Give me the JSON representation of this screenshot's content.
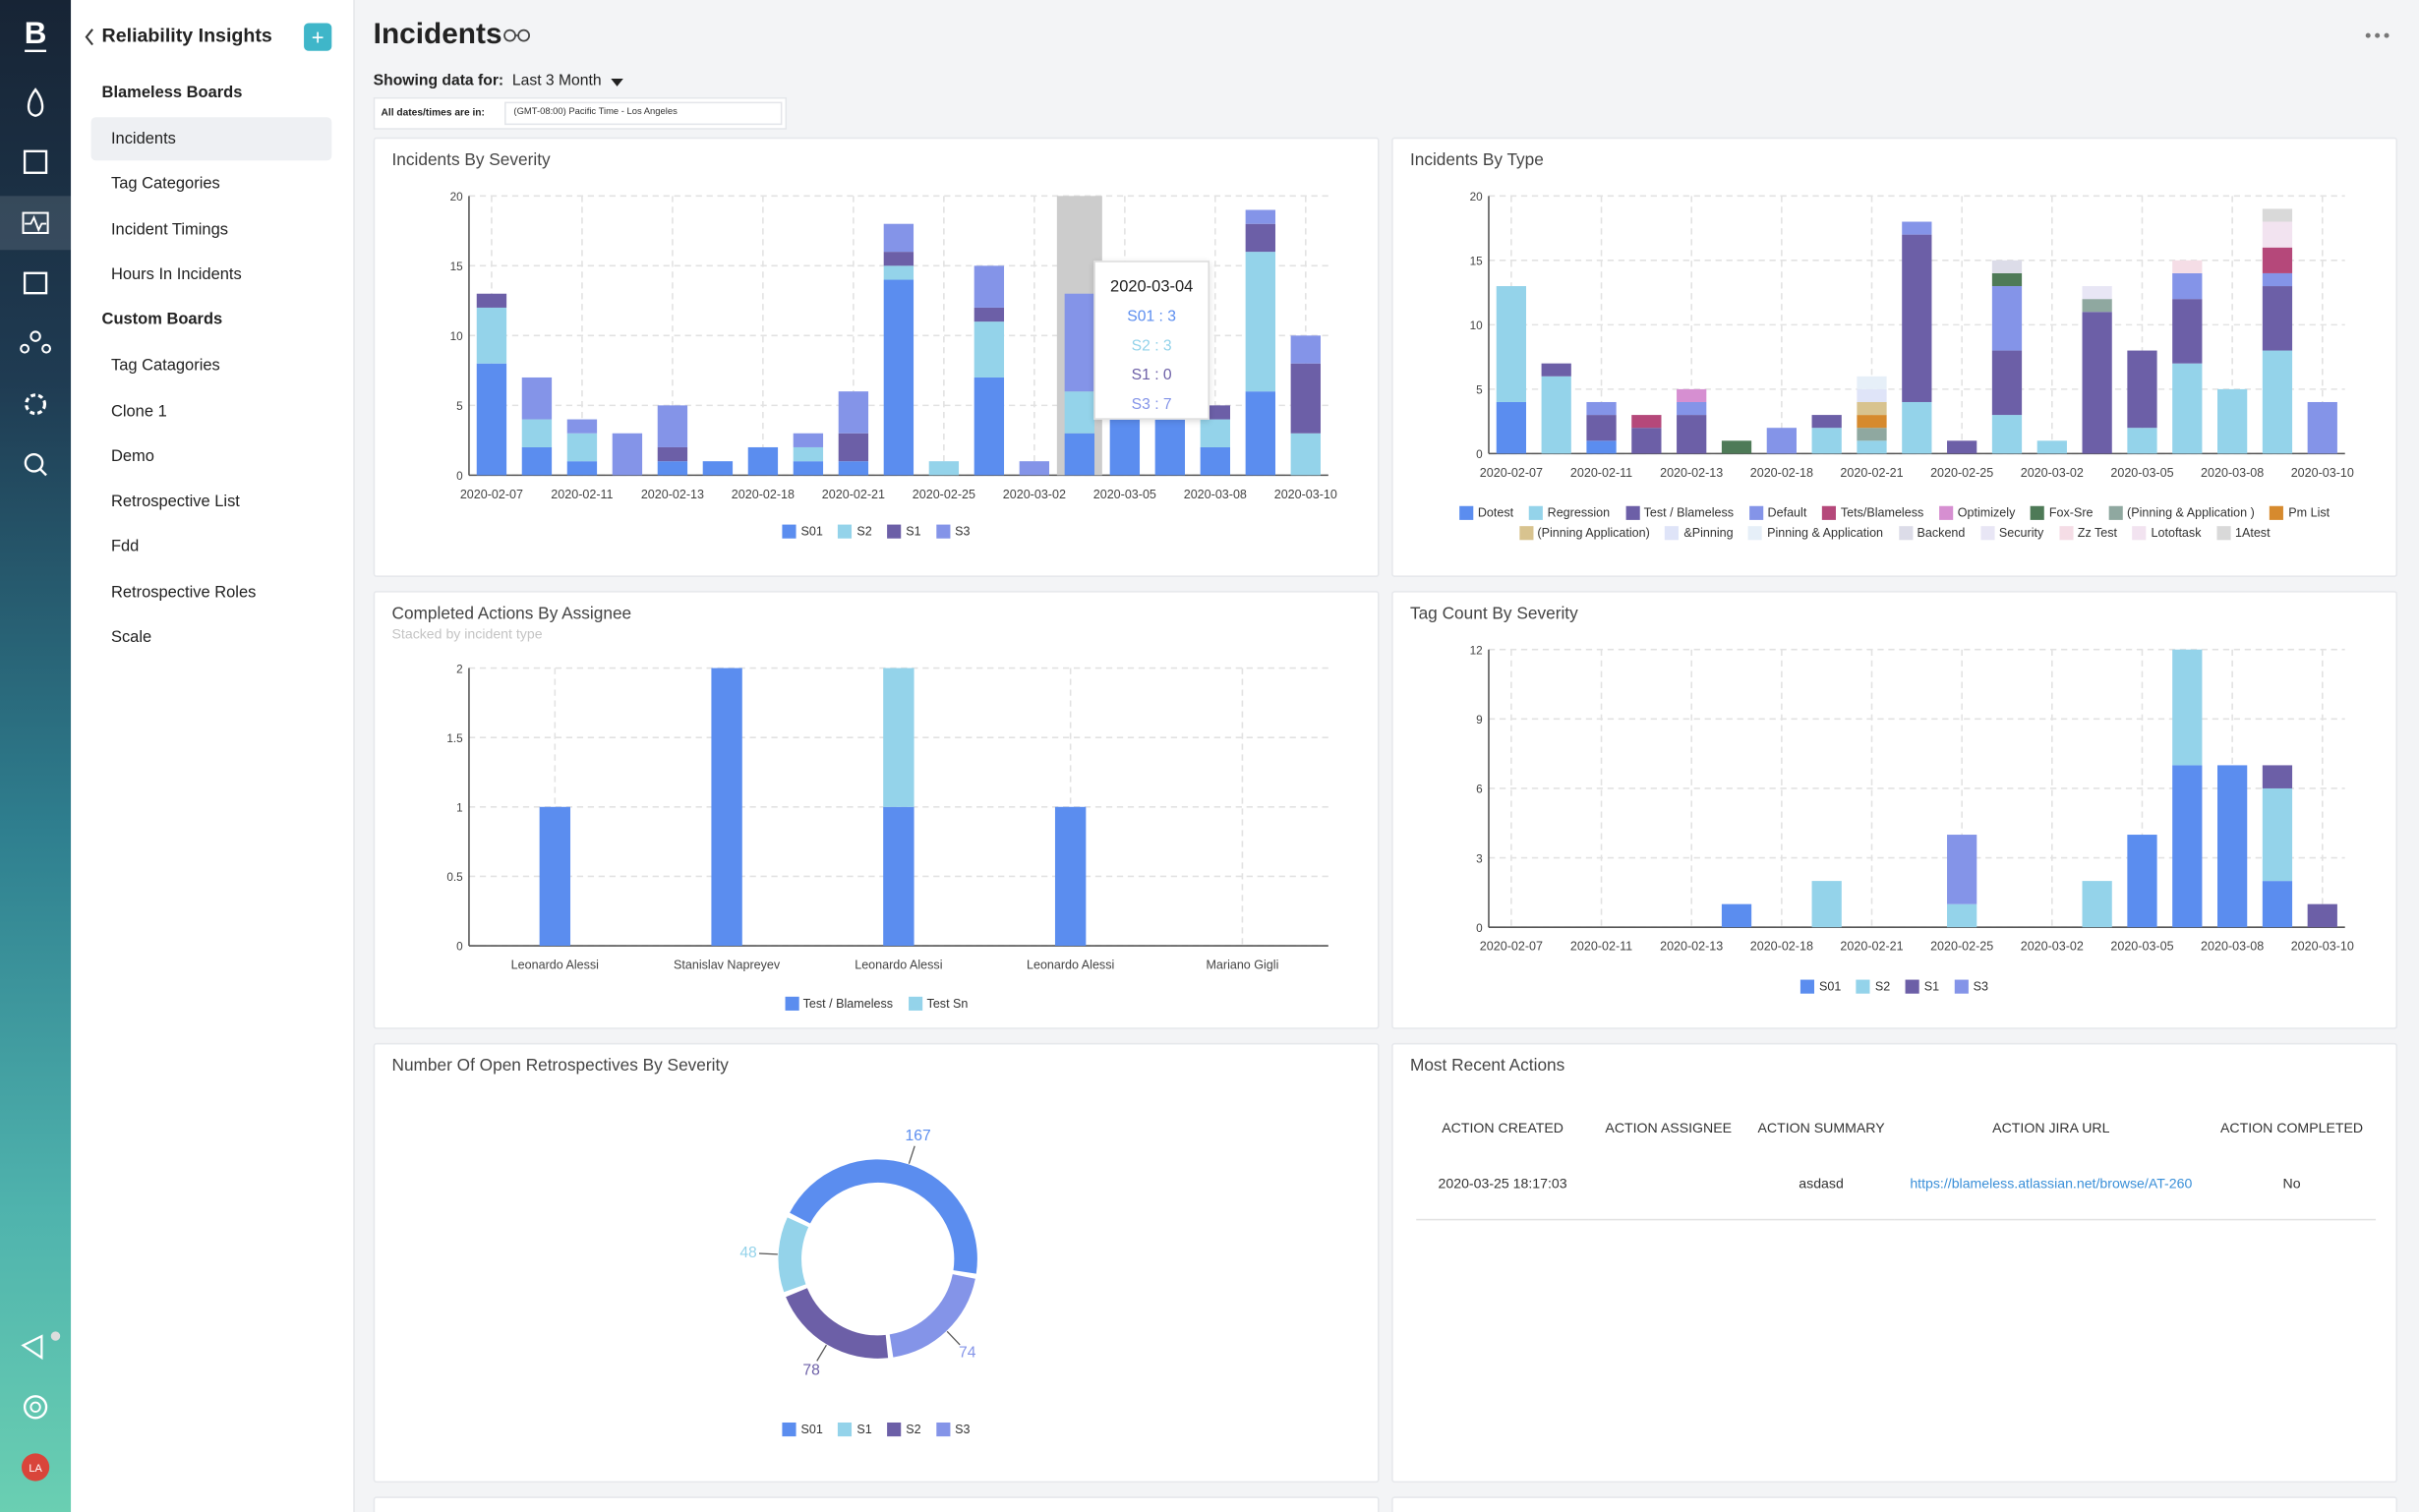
{
  "sidebar": {
    "title": "Reliability Insights",
    "sections": [
      {
        "heading": "Blameless Boards",
        "items": [
          "Incidents",
          "Tag Categories",
          "Incident Timings",
          "Hours In Incidents"
        ]
      },
      {
        "heading": "Custom Boards",
        "items": [
          "Tag Catagories",
          "Clone 1",
          "Demo",
          "Retrospective List",
          "Fdd",
          "Retrospective Roles",
          "Scale"
        ]
      }
    ],
    "avatar": "LA"
  },
  "header": {
    "title": "Incidents",
    "showing_label": "Showing data for:",
    "range": "Last 3 Month",
    "tz_label": "All dates/times are in:",
    "tz": "(GMT-08:00) Pacific Time - Los Angeles"
  },
  "charts": [
    {
      "type": "bar",
      "stacked": true,
      "grid": true,
      "title": "Incidents By Severity",
      "categories": [
        "2020-02-07",
        null,
        "2020-02-11",
        null,
        "2020-02-13",
        null,
        "2020-02-18",
        null,
        "2020-02-21",
        null,
        "2020-02-25",
        null,
        "2020-03-02",
        null,
        "2020-03-05",
        null,
        "2020-03-08",
        null,
        "2020-03-10"
      ],
      "series": [
        {
          "name": "S01",
          "color": "#5b8def",
          "values": [
            8,
            2,
            1,
            0,
            1,
            1,
            2,
            1,
            1,
            14,
            0,
            7,
            0,
            3,
            5,
            5,
            2,
            6,
            0
          ]
        },
        {
          "name": "S2",
          "color": "#94d3ea",
          "values": [
            4,
            2,
            2,
            0,
            0,
            0,
            0,
            1,
            0,
            1,
            1,
            4,
            0,
            3,
            0,
            0,
            2,
            10,
            3
          ]
        },
        {
          "name": "S1",
          "color": "#6c5fa7",
          "values": [
            1,
            0,
            0,
            0,
            1,
            0,
            0,
            0,
            2,
            1,
            0,
            1,
            0,
            0,
            0,
            0,
            1,
            2,
            5
          ]
        },
        {
          "name": "S3",
          "color": "#8494e8",
          "values": [
            0,
            3,
            1,
            3,
            3,
            0,
            0,
            1,
            3,
            2,
            0,
            3,
            1,
            7,
            0,
            0,
            0,
            1,
            2
          ]
        }
      ],
      "ylim": [
        0,
        20
      ],
      "yticks": [
        0,
        5,
        10,
        15,
        20
      ],
      "tooltip": {
        "category": "2020-03-04",
        "labels": [
          "S01 : 3",
          "S2 : 3",
          "S1 : 0",
          "S3 : 7"
        ]
      }
    },
    {
      "type": "bar",
      "stacked": true,
      "grid": true,
      "title": "Incidents By Type",
      "categories": [
        "2020-02-07",
        null,
        "2020-02-11",
        null,
        "2020-02-13",
        null,
        "2020-02-18",
        null,
        "2020-02-21",
        null,
        "2020-02-25",
        null,
        "2020-03-02",
        null,
        "2020-03-05",
        null,
        "2020-03-08",
        null,
        "2020-03-10"
      ],
      "series": [
        {
          "name": "Dotest",
          "color": "#5b8def",
          "values": [
            4,
            0,
            1,
            0,
            0,
            0,
            0,
            0,
            0,
            0,
            0,
            0,
            0,
            0,
            0,
            0,
            0,
            0,
            0
          ]
        },
        {
          "name": "Regression",
          "color": "#94d3ea",
          "values": [
            9,
            6,
            0,
            0,
            0,
            0,
            0,
            2,
            1,
            4,
            0,
            3,
            1,
            0,
            2,
            7,
            5,
            8,
            0
          ]
        },
        {
          "name": "Test / Blameless",
          "color": "#6c5fa7",
          "values": [
            0,
            1,
            2,
            2,
            3,
            0,
            0,
            1,
            0,
            13,
            1,
            5,
            0,
            11,
            6,
            5,
            0,
            5,
            0
          ]
        },
        {
          "name": "Default",
          "color": "#8494e8",
          "values": [
            0,
            0,
            1,
            0,
            1,
            0,
            2,
            0,
            0,
            1,
            0,
            5,
            0,
            0,
            0,
            2,
            0,
            1,
            4
          ]
        },
        {
          "name": "Tets/Blameless",
          "color": "#b5487a",
          "values": [
            0,
            0,
            0,
            1,
            0,
            0,
            0,
            0,
            0,
            0,
            0,
            0,
            0,
            0,
            0,
            0,
            0,
            2,
            0
          ]
        },
        {
          "name": "Optimizely",
          "color": "#d68fd1",
          "values": [
            0,
            0,
            0,
            0,
            1,
            0,
            0,
            0,
            0,
            0,
            0,
            0,
            0,
            0,
            0,
            0,
            0,
            0,
            0
          ]
        },
        {
          "name": "Fox-Sre",
          "color": "#4e7a57",
          "values": [
            0,
            0,
            0,
            0,
            0,
            1,
            0,
            0,
            0,
            0,
            0,
            1,
            0,
            0,
            0,
            0,
            0,
            0,
            0
          ]
        },
        {
          "name": "(Pinning & Application )",
          "color": "#8fa8a0",
          "values": [
            0,
            0,
            0,
            0,
            0,
            0,
            0,
            0,
            1,
            0,
            0,
            0,
            0,
            1,
            0,
            0,
            0,
            0,
            0
          ]
        },
        {
          "name": "Pm List",
          "color": "#d68a2e",
          "values": [
            0,
            0,
            0,
            0,
            0,
            0,
            0,
            0,
            1,
            0,
            0,
            0,
            0,
            0,
            0,
            0,
            0,
            0,
            0
          ]
        },
        {
          "name": "(Pinning Application)",
          "color": "#d8c38f",
          "values": [
            0,
            0,
            0,
            0,
            0,
            0,
            0,
            0,
            1,
            0,
            0,
            0,
            0,
            0,
            0,
            0,
            0,
            0,
            0
          ]
        },
        {
          "name": "&Pinning",
          "color": "#dfe4f8",
          "values": [
            0,
            0,
            0,
            0,
            0,
            0,
            0,
            0,
            1,
            0,
            0,
            0,
            0,
            0,
            0,
            0,
            0,
            0,
            0
          ]
        },
        {
          "name": "Pinning & Application",
          "color": "#e6eff8",
          "values": [
            0,
            0,
            0,
            0,
            0,
            0,
            0,
            0,
            1,
            0,
            0,
            0,
            0,
            0,
            0,
            0,
            0,
            0,
            0
          ]
        },
        {
          "name": "Backend",
          "color": "#dcdce8",
          "values": [
            0,
            0,
            0,
            0,
            0,
            0,
            0,
            0,
            0,
            0,
            0,
            1,
            0,
            0,
            0,
            0,
            0,
            0,
            0
          ]
        },
        {
          "name": "Security",
          "color": "#e8e6f5",
          "values": [
            0,
            0,
            0,
            0,
            0,
            0,
            0,
            0,
            0,
            0,
            0,
            0,
            0,
            1,
            0,
            0,
            0,
            0,
            0
          ]
        },
        {
          "name": "Zz Test",
          "color": "#f5dde6",
          "values": [
            0,
            0,
            0,
            0,
            0,
            0,
            0,
            0,
            0,
            0,
            0,
            0,
            0,
            0,
            0,
            1,
            0,
            0,
            0
          ]
        },
        {
          "name": "Lotoftask",
          "color": "#f2e3f0",
          "values": [
            0,
            0,
            0,
            0,
            0,
            0,
            0,
            0,
            0,
            0,
            0,
            0,
            0,
            0,
            0,
            0,
            0,
            2,
            0
          ]
        },
        {
          "name": "1Atest",
          "color": "#d9d9d9",
          "values": [
            0,
            0,
            0,
            0,
            0,
            0,
            0,
            0,
            0,
            0,
            0,
            0,
            0,
            0,
            0,
            0,
            0,
            1,
            0
          ]
        }
      ],
      "ylim": [
        0,
        20
      ],
      "yticks": [
        0,
        5,
        10,
        15,
        20
      ]
    },
    {
      "type": "bar",
      "stacked": true,
      "grid": true,
      "title": "Completed Actions By Assignee",
      "subtitle": "Stacked by incident type",
      "categories": [
        "Leonardo Alessi",
        "Stanislav Napreyev",
        "Leonardo Alessi",
        "Leonardo Alessi",
        "Mariano Gigli"
      ],
      "series": [
        {
          "name": "Test / Blameless",
          "color": "#5b8def",
          "values": [
            1,
            2,
            1,
            1,
            0
          ]
        },
        {
          "name": "Test Sn",
          "color": "#94d3ea",
          "values": [
            0,
            0,
            1,
            0,
            0
          ]
        }
      ],
      "ylim": [
        0,
        2
      ],
      "yticks": [
        0,
        0.5,
        1,
        1.5,
        2
      ]
    },
    {
      "type": "bar",
      "stacked": true,
      "grid": true,
      "title": "Tag Count By Severity",
      "categories": [
        "2020-02-07",
        null,
        "2020-02-11",
        null,
        "2020-02-13",
        null,
        "2020-02-18",
        null,
        "2020-02-21",
        null,
        "2020-02-25",
        null,
        "2020-03-02",
        null,
        "2020-03-05",
        null,
        "2020-03-08",
        null,
        "2020-03-10"
      ],
      "series": [
        {
          "name": "S01",
          "color": "#5b8def",
          "values": [
            0,
            0,
            0,
            0,
            0,
            1,
            0,
            0,
            0,
            0,
            0,
            0,
            0,
            0,
            4,
            7,
            7,
            2,
            0
          ]
        },
        {
          "name": "S2",
          "color": "#94d3ea",
          "values": [
            0,
            0,
            0,
            0,
            0,
            0,
            0,
            2,
            0,
            0,
            1,
            0,
            0,
            2,
            0,
            5,
            0,
            4,
            0
          ]
        },
        {
          "name": "S1",
          "color": "#6c5fa7",
          "values": [
            0,
            0,
            0,
            0,
            0,
            0,
            0,
            0,
            0,
            0,
            0,
            0,
            0,
            0,
            0,
            0,
            0,
            1,
            1
          ]
        },
        {
          "name": "S3",
          "color": "#8494e8",
          "values": [
            0,
            0,
            0,
            0,
            0,
            0,
            0,
            0,
            0,
            0,
            3,
            0,
            0,
            0,
            0,
            0,
            0,
            0,
            0
          ]
        }
      ],
      "ylim": [
        0,
        12
      ],
      "yticks": [
        0,
        3,
        6,
        9,
        12
      ]
    },
    {
      "type": "pie",
      "donut": true,
      "title": "Number Of Open Retrospectives By Severity",
      "categories": [
        "S01",
        "S1",
        "S2",
        "S3"
      ],
      "values": [
        167,
        48,
        78,
        74
      ],
      "colors": [
        "#5b8def",
        "#94d3ea",
        "#6c5fa7",
        "#8494e8"
      ]
    }
  ],
  "table": {
    "title": "Most Recent Actions",
    "headers": [
      "ACTION CREATED",
      "ACTION ASSIGNEE",
      "ACTION SUMMARY",
      "ACTION JIRA URL",
      "ACTION COMPLETED"
    ],
    "rows": [
      {
        "created": "2020-03-25 18:17:03",
        "summary": "asdasd",
        "jira_url": "https://blameless.atlassian.net/browse/AT-260",
        "completed": "No"
      }
    ]
  }
}
